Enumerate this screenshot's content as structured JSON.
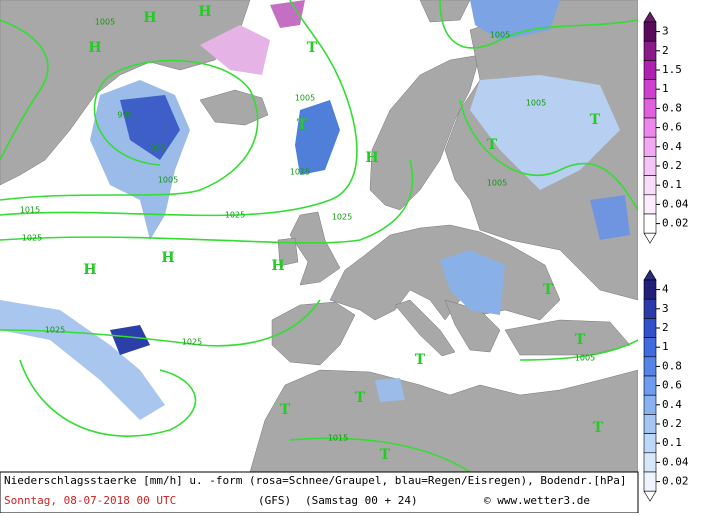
{
  "map": {
    "pressure_centers": [
      "H",
      "H",
      "H",
      "T",
      "T",
      "H",
      "T",
      "T",
      "H",
      "H",
      "H",
      "T",
      "T",
      "T",
      "T",
      "T",
      "T",
      "T"
    ],
    "isobar_labels": [
      "1005",
      "1005",
      "1005",
      "1005",
      "995",
      "995",
      "1005",
      "1015",
      "1025",
      "1025",
      "1015",
      "1005",
      "1025",
      "1025",
      "1025",
      "1005",
      "1015"
    ]
  },
  "legend": {
    "snow": [
      "3",
      "2",
      "1.5",
      "1",
      "0.8",
      "0.6",
      "0.4",
      "0.2",
      "0.1",
      "0.04",
      "0.02"
    ],
    "rain": [
      "4",
      "3",
      "2",
      "1",
      "0.8",
      "0.6",
      "0.4",
      "0.2",
      "0.1",
      "0.04",
      "0.02"
    ]
  },
  "footer": {
    "description": "Niederschlagsstaerke [mm/h] u. -form (rosa=Schnee/Graupel, blau=Regen/Eisregen), Bodendr.[hPa]",
    "valid_time": "Sonntag, 08-07-2018  00 UTC",
    "model": "(GFS)",
    "run": "(Samstag 00 + 24)",
    "source": "© www.wetter3.de"
  }
}
